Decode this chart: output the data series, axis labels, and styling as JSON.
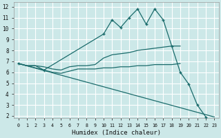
{
  "xlabel": "Humidex (Indice chaleur)",
  "bg_color": "#cce8e8",
  "grid_color": "#ffffff",
  "line_color": "#1a6b6b",
  "xlim": [
    -0.5,
    23.5
  ],
  "ylim": [
    1.8,
    12.4
  ],
  "xticks": [
    0,
    1,
    2,
    3,
    4,
    5,
    6,
    7,
    8,
    9,
    10,
    11,
    12,
    13,
    14,
    15,
    16,
    17,
    18,
    19,
    20,
    21,
    22,
    23
  ],
  "yticks": [
    2,
    3,
    4,
    5,
    6,
    7,
    8,
    9,
    10,
    11,
    12
  ],
  "series_spiky": {
    "x": [
      0,
      3,
      10,
      11,
      12,
      13,
      14,
      15,
      16,
      17,
      18,
      19,
      20,
      21,
      22
    ],
    "y": [
      6.8,
      6.2,
      9.5,
      10.8,
      10.1,
      11.0,
      11.8,
      10.4,
      11.8,
      10.8,
      8.4,
      6.0,
      4.9,
      3.0,
      1.9
    ]
  },
  "series_upper": {
    "x": [
      0,
      1,
      2,
      3,
      4,
      5,
      6,
      7,
      8,
      9,
      10,
      11,
      12,
      13,
      14,
      15,
      16,
      17,
      18,
      19
    ],
    "y": [
      6.8,
      6.6,
      6.6,
      6.5,
      6.3,
      6.2,
      6.5,
      6.6,
      6.6,
      6.7,
      7.3,
      7.6,
      7.7,
      7.8,
      8.0,
      8.1,
      8.2,
      8.3,
      8.4,
      8.4
    ]
  },
  "series_lower_flat": {
    "x": [
      0,
      1,
      2,
      3,
      4,
      5,
      6,
      7,
      8,
      9,
      10,
      11,
      12,
      13,
      14,
      15,
      16,
      17,
      18,
      19
    ],
    "y": [
      6.8,
      6.6,
      6.6,
      6.2,
      6.0,
      5.9,
      6.1,
      6.3,
      6.3,
      6.3,
      6.4,
      6.4,
      6.5,
      6.5,
      6.6,
      6.6,
      6.7,
      6.7,
      6.7,
      6.8
    ]
  },
  "series_diagonal": {
    "x": [
      0,
      23
    ],
    "y": [
      6.8,
      1.9
    ]
  }
}
